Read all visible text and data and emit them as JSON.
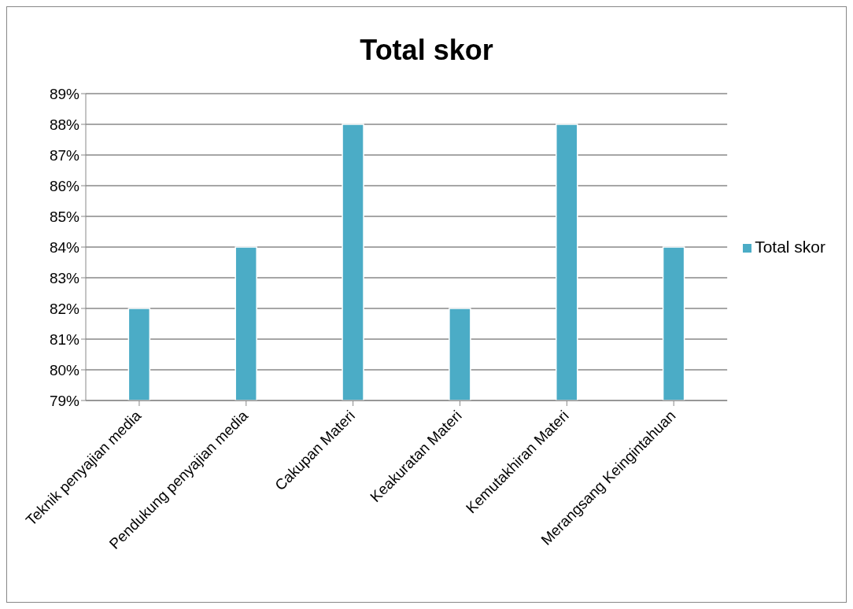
{
  "chart_data": {
    "type": "bar",
    "title": "Total skor",
    "categories": [
      "Teknik penyajian media",
      "Pendukung penyajian media",
      "Cakupan Materi",
      "Keakuratan Materi",
      "Kemutakhiran Materi",
      "Merangsang Keingintahuan"
    ],
    "series": [
      {
        "name": "Total skor",
        "color": "#4bacc6",
        "values": [
          82,
          84,
          88,
          82,
          88,
          84
        ]
      }
    ],
    "ylim": [
      79,
      89
    ],
    "yticks": [
      {
        "value": 79,
        "label": "79%"
      },
      {
        "value": 80,
        "label": "80%"
      },
      {
        "value": 81,
        "label": "81%"
      },
      {
        "value": 82,
        "label": "82%"
      },
      {
        "value": 83,
        "label": "83%"
      },
      {
        "value": 84,
        "label": "84%"
      },
      {
        "value": 85,
        "label": "85%"
      },
      {
        "value": 86,
        "label": "86%"
      },
      {
        "value": 87,
        "label": "87%"
      },
      {
        "value": 88,
        "label": "88%"
      },
      {
        "value": 89,
        "label": "89%"
      }
    ],
    "grid": "y",
    "legend": "right"
  }
}
